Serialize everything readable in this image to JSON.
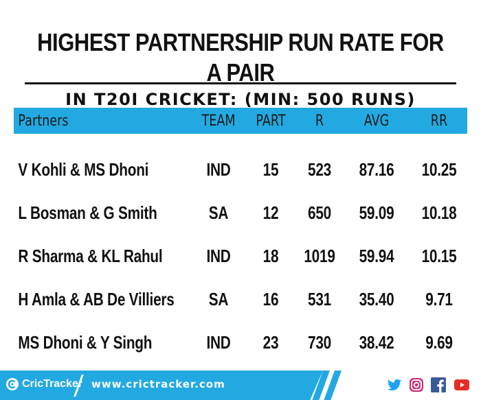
{
  "title": {
    "line1": "HIGHEST PARTNERSHIP RUN RATE FOR A PAIR",
    "line2": "IN T20I CRICKET: (MIN: 500 RUNS)"
  },
  "table": {
    "headers": {
      "partners": "Partners",
      "team": "TEAM",
      "part": "PART",
      "r": "R",
      "avg": "AVG",
      "rr": "RR"
    },
    "rows": [
      {
        "partners": "V Kohli & MS Dhoni",
        "team": "IND",
        "part": "15",
        "r": "523",
        "avg": "87.16",
        "rr": "10.25"
      },
      {
        "partners": "L Bosman & G Smith",
        "team": "SA",
        "part": "12",
        "r": "650",
        "avg": "59.09",
        "rr": "10.18"
      },
      {
        "partners": "R Sharma & KL Rahul",
        "team": "IND",
        "part": "18",
        "r": "1019",
        "avg": "59.94",
        "rr": "10.15"
      },
      {
        "partners": "H Amla & AB De Villiers",
        "team": "SA",
        "part": "16",
        "r": "531",
        "avg": "35.40",
        "rr": "9.71"
      },
      {
        "partners": "MS Dhoni & Y Singh",
        "team": "IND",
        "part": "23",
        "r": "730",
        "avg": "38.42",
        "rr": "9.69"
      }
    ]
  },
  "footer": {
    "brand": "CricTracker",
    "website": "www.crictracker.com",
    "social_icons": [
      "twitter-icon",
      "instagram-icon",
      "facebook-icon",
      "youtube-icon"
    ]
  },
  "colors": {
    "accent": "#23a9e1",
    "text": "#111111"
  }
}
